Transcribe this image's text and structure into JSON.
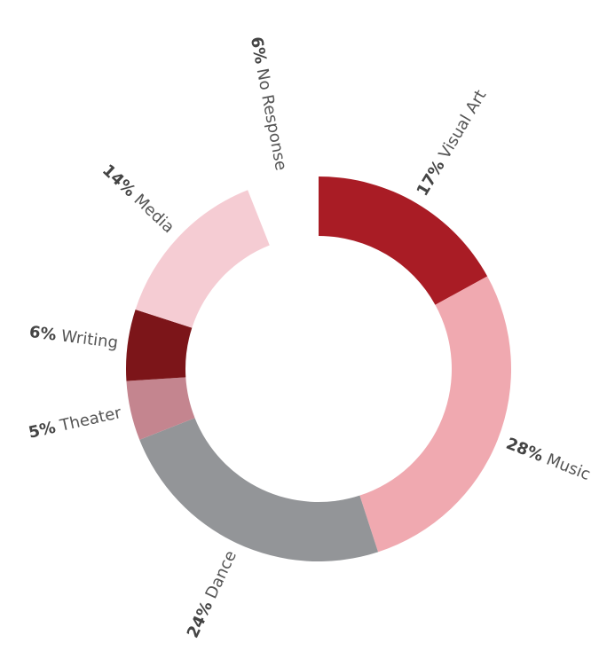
{
  "chart_data": {
    "type": "donut",
    "categories": [
      "Visual Art",
      "Music",
      "Dance",
      "Theater",
      "Writing",
      "Media",
      "No Response"
    ],
    "values": [
      17,
      28,
      24,
      5,
      6,
      14,
      6
    ],
    "value_labels": [
      "17%",
      "28%",
      "24%",
      "5%",
      "6%",
      "14%",
      "6%"
    ],
    "colors": [
      "#a91c25",
      "#f0a9b0",
      "#939598",
      "#c4858f",
      "#7c1519",
      "#f5ccd3",
      "none"
    ]
  }
}
